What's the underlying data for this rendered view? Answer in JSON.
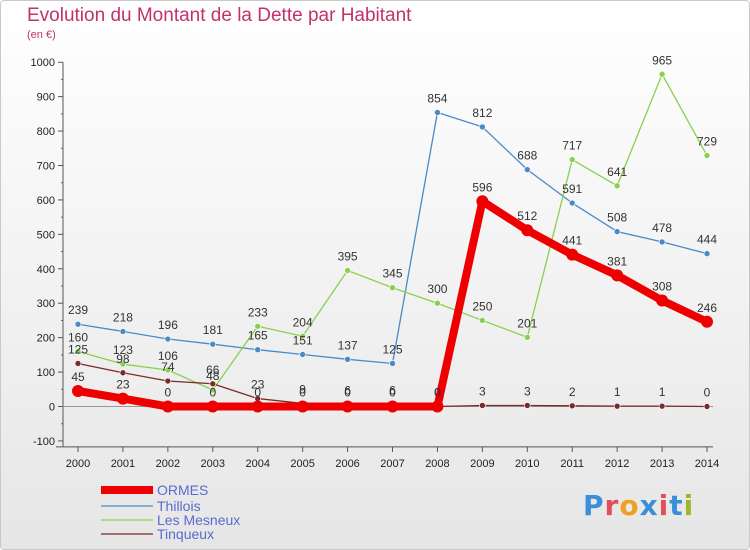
{
  "title": "Evolution du Montant de la Dette par Habitant",
  "unit": "(en €)",
  "logo": {
    "text": "Proxiti",
    "colors": [
      "#3a8fd8",
      "#e0505a",
      "#f0a020",
      "#3a8fd8",
      "#e0505a",
      "#3a8fd8",
      "#9ab82a"
    ]
  },
  "chart_data": {
    "type": "line",
    "title": "Evolution du Montant de la Dette par Habitant",
    "ylabel": "(en €)",
    "xlabel": "",
    "x": [
      "2000",
      "2001",
      "2002",
      "2003",
      "2004",
      "2005",
      "2006",
      "2007",
      "2008",
      "2009",
      "2010",
      "2011",
      "2012",
      "2013",
      "2014"
    ],
    "ylim": [
      -100,
      1000
    ],
    "yticks": [
      -100,
      0,
      100,
      200,
      300,
      400,
      500,
      600,
      700,
      800,
      900,
      1000
    ],
    "grid": false,
    "legend_position": "bottom-left",
    "series": [
      {
        "name": "ORMES",
        "color": "#ee0000",
        "width": 8,
        "marker": 6,
        "values": [
          45,
          23,
          0,
          0,
          0,
          0,
          0,
          0,
          0,
          596,
          512,
          441,
          381,
          308,
          246
        ]
      },
      {
        "name": "Thillois",
        "color": "#4a8ac8",
        "width": 1.3,
        "marker": 3,
        "values": [
          239,
          218,
          196,
          181,
          165,
          151,
          137,
          125,
          854,
          812,
          688,
          591,
          508,
          478,
          444
        ]
      },
      {
        "name": "Les Mesneux",
        "color": "#8ad050",
        "width": 1.3,
        "marker": 3,
        "values": [
          160,
          123,
          106,
          48,
          233,
          204,
          395,
          345,
          300,
          250,
          201,
          717,
          641,
          965,
          729
        ]
      },
      {
        "name": "Tinqueux",
        "color": "#7a2a2a",
        "width": 1.3,
        "marker": 3,
        "values": [
          125,
          98,
          74,
          66,
          23,
          9,
          6,
          6,
          0,
          3,
          3,
          2,
          1,
          1,
          0
        ]
      }
    ]
  }
}
